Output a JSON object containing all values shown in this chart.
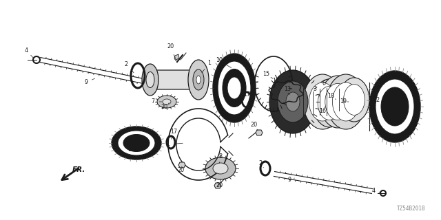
{
  "bg_color": "#ffffff",
  "fig_width": 6.4,
  "fig_height": 3.2,
  "watermark": "TZ54B2018",
  "dark": "#1a1a1a",
  "mid": "#555555",
  "light": "#aaaaaa",
  "white": "#ffffff"
}
